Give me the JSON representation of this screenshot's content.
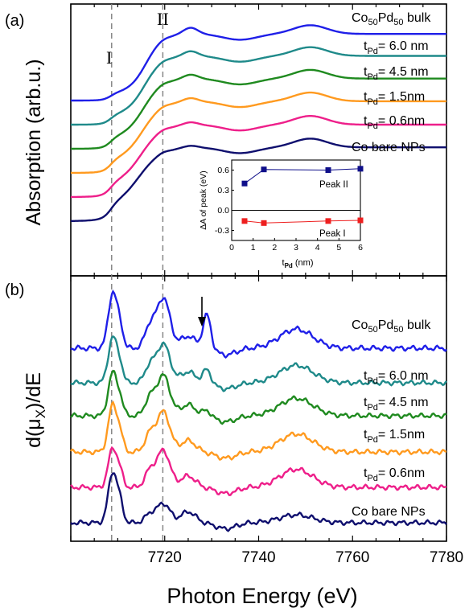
{
  "colors": {
    "bulk": "#1f1fe8",
    "t60": "#1f8a8a",
    "t45": "#1f8a1f",
    "t15": "#ff9a1f",
    "t06": "#ee1f8a",
    "bare": "#0f0f6e",
    "inset_peak2": "#0f0f8a",
    "inset_peak1": "#ee1f1f",
    "guides": "#808080"
  },
  "panel_a_label": "(a)",
  "panel_b_label": "(b)",
  "ylabel_a": "Absorption (arb.u.)",
  "ylabel_b": "d(μ",
  "ylabel_b_sub": "X",
  "ylabel_b_tail": ")/dE",
  "xlabel": "Photon Energy (eV)",
  "peak_I_label": "I",
  "peak_II_label": "II",
  "series_labels": {
    "bulk_main": "Co",
    "bulk_sub1": "50",
    "bulk_mid": "Pd",
    "bulk_sub2": "50",
    "bulk_tail": " bulk",
    "t_main": "t",
    "t_sub": "Pd",
    "t60_val": "= 6.0 nm",
    "t45_val": "= 4.5 nm",
    "t15a_val": "= 1.5nm",
    "t06a_val": "= 0.6nm",
    "t15b_val": "= 1.5nm",
    "t06b_val": "= 0.6nm",
    "bare": "Co bare NPs"
  },
  "inset": {
    "ylabel": "ΔA of peak (eV)",
    "xlabel_main": "t",
    "xlabel_sub": "Pd",
    "xlabel_tail": " (nm)",
    "peak2_label": "Peak II",
    "peak1_label": "Peak I"
  },
  "chart_data": [
    {
      "type": "line",
      "panel": "a",
      "xlabel": "Photon Energy (eV)",
      "ylabel": "Absorption (arb.u.)",
      "xlim": [
        7700,
        7780
      ],
      "guides_x": [
        7708.7,
        7719.6
      ],
      "series": [
        {
          "name": "Co50Pd50 bulk",
          "offset": 5
        },
        {
          "name": "tPd= 6.0 nm",
          "offset": 4
        },
        {
          "name": "tPd= 4.5 nm",
          "offset": 3
        },
        {
          "name": "tPd= 1.5nm",
          "offset": 2
        },
        {
          "name": "tPd= 0.6nm",
          "offset": 1
        },
        {
          "name": "Co bare NPs",
          "offset": 0
        }
      ]
    },
    {
      "type": "line",
      "panel": "b",
      "xlabel": "Photon Energy (eV)",
      "ylabel": "d(μX)/dE",
      "xlim": [
        7700,
        7780
      ],
      "x_ticks": [
        7720,
        7740,
        7760,
        7780
      ],
      "arrow_at_x": 7729,
      "series": [
        {
          "name": "Co50Pd50 bulk"
        },
        {
          "name": "tPd= 6.0 nm"
        },
        {
          "name": "tPd= 4.5 nm"
        },
        {
          "name": "tPd= 1.5nm"
        },
        {
          "name": "tPd= 0.6nm"
        },
        {
          "name": "Co bare NPs"
        }
      ]
    },
    {
      "type": "line",
      "panel": "inset",
      "xlabel": "tPd (nm)",
      "ylabel": "ΔA of peak (eV)",
      "xlim": [
        0,
        6
      ],
      "ylim": [
        -0.45,
        0.75
      ],
      "x_ticks": [
        0,
        1,
        2,
        3,
        4,
        5,
        6
      ],
      "y_ticks": [
        -0.3,
        0.0,
        0.3,
        0.6
      ],
      "series": [
        {
          "name": "Peak II",
          "x": [
            0.6,
            1.5,
            4.5,
            6.0
          ],
          "y": [
            0.4,
            0.61,
            0.6,
            0.62
          ]
        },
        {
          "name": "Peak I",
          "x": [
            0.6,
            1.5,
            4.5,
            6.0
          ],
          "y": [
            -0.16,
            -0.19,
            -0.16,
            -0.15
          ]
        }
      ]
    }
  ]
}
